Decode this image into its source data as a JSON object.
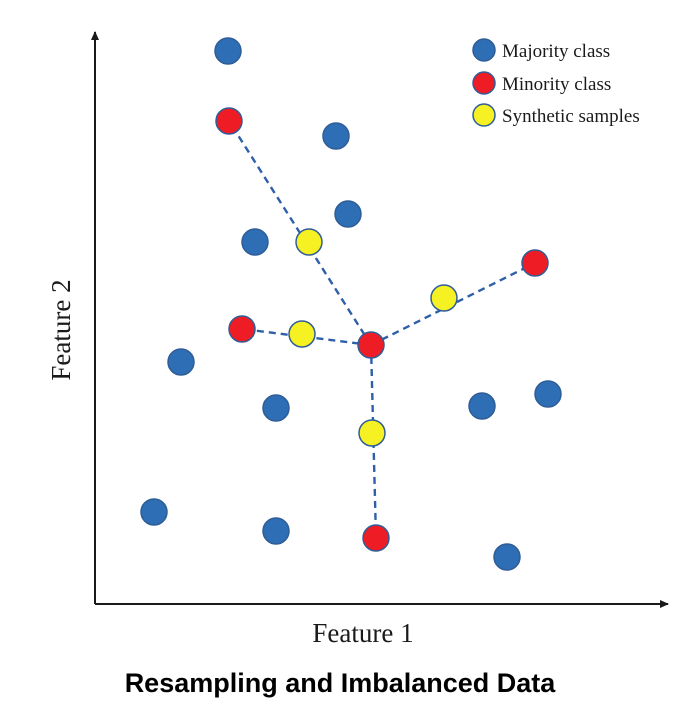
{
  "xlabel": "Feature 1",
  "ylabel": "Feature 2",
  "caption": "Resampling and Imbalanced Data",
  "legend": [
    {
      "label": "Majority class",
      "color": "#2e6eb5"
    },
    {
      "label": "Minority class",
      "color": "#ee1c24"
    },
    {
      "label": "Synthetic samples",
      "color": "#f6f122"
    }
  ],
  "colors": {
    "majority": "#2e6eb5",
    "minority": "#ee1c24",
    "synthetic": "#f6f122",
    "outline": "#2f5d97",
    "link": "#2e5fa8"
  }
}
